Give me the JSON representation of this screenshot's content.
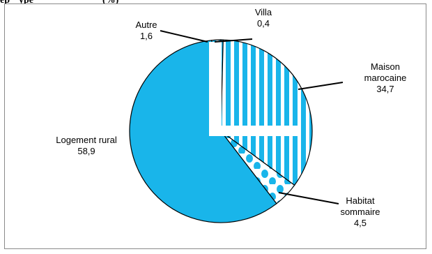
{
  "title_fragment": "ep",
  "title_fragment_2": "ype",
  "title_fragment_3": "(%)",
  "colors": {
    "main": "#19B5EA",
    "outline": "#000000",
    "border": "#8a8a8a"
  },
  "chart_data": {
    "type": "pie",
    "title": "",
    "slices": [
      {
        "label": "Villa",
        "value": 0.4,
        "value_text": "0,4",
        "pattern": "solid"
      },
      {
        "label": "Maison marocaine",
        "label_lines": [
          "Maison",
          "marocaine"
        ],
        "value": 34.7,
        "value_text": "34,7",
        "pattern": "vertical-stripes"
      },
      {
        "label": "Habitat sommaire",
        "label_lines": [
          "Habitat",
          "sommaire"
        ],
        "value": 4.5,
        "value_text": "4,5",
        "pattern": "dots"
      },
      {
        "label": "Logement rural",
        "label_lines": [
          "Logement rural"
        ],
        "value": 58.9,
        "value_text": "58,9",
        "pattern": "solid"
      },
      {
        "label": "Autre",
        "label_lines": [
          "Autre"
        ],
        "value": 1.6,
        "value_text": "1,6",
        "pattern": "diamonds"
      }
    ]
  }
}
